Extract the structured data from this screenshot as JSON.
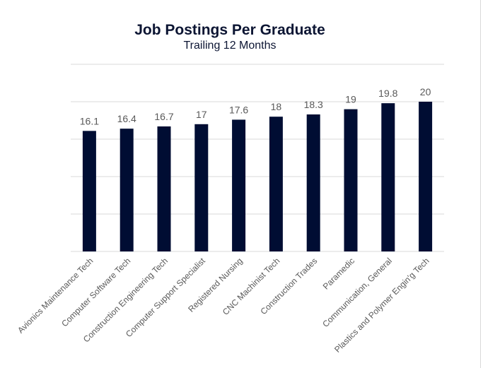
{
  "chart_data": {
    "type": "bar",
    "title": "Job Postings Per Graduate",
    "subtitle": "Trailing 12 Months",
    "xlabel": "",
    "ylabel": "",
    "categories": [
      "Avionics Maintenance Tech",
      "Computer Software Tech",
      "Construction Engineering Tech",
      "Computer Support Specialist",
      "Registered Nursing",
      "CNC Machinist Tech",
      "Construction Trades",
      "Paramedic",
      "Communication, General",
      "Plastics and Polymer Engin'g Tech"
    ],
    "values": [
      16.1,
      16.4,
      16.7,
      17,
      17.6,
      18,
      18.3,
      19,
      19.8,
      20
    ],
    "value_labels": [
      "16.1",
      "16.4",
      "16.7",
      "17",
      "17.6",
      "18",
      "18.3",
      "19",
      "19.8",
      "20"
    ],
    "ylim": [
      0,
      25
    ],
    "gridlines": [
      5,
      10,
      15,
      20,
      25
    ],
    "grid": true,
    "legend": "none",
    "colors": {
      "bar": "#000d33",
      "grid": "#d9d9d9",
      "title": "#0c1533",
      "label": "#595959"
    }
  }
}
